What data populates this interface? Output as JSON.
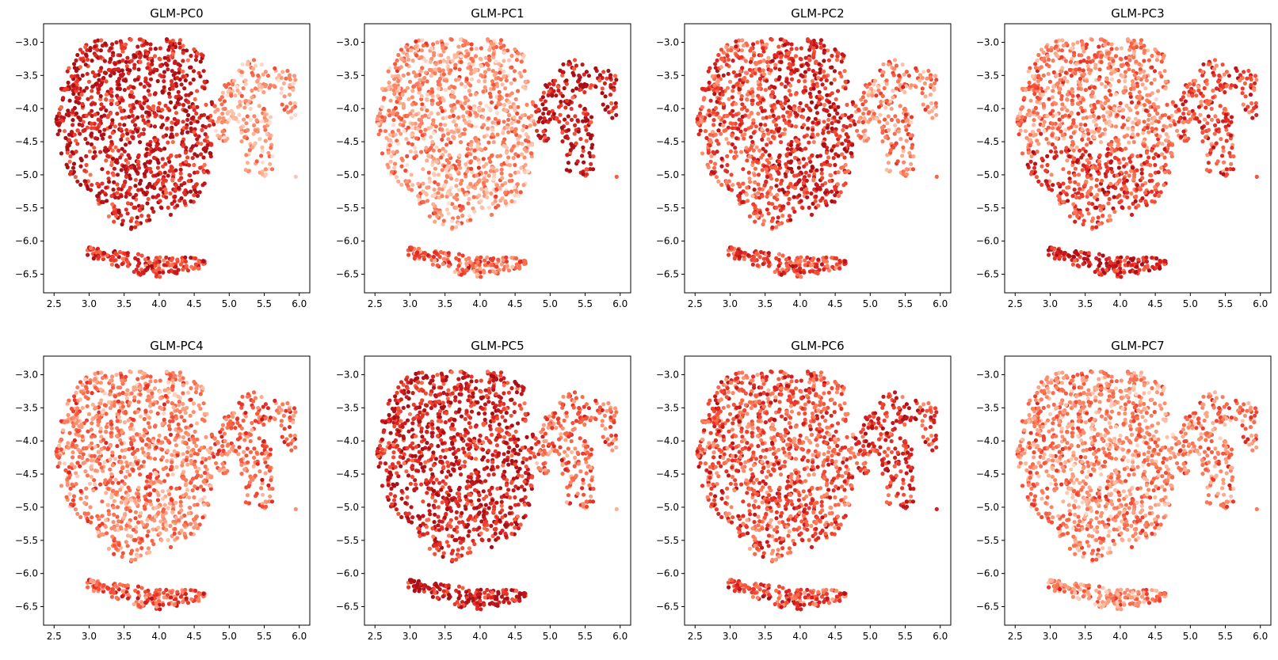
{
  "figure": {
    "colormap": "Reds",
    "colormap_stops": [
      "#fee0d2",
      "#fcbba1",
      "#fc9272",
      "#fb6a4a",
      "#ef3b2c",
      "#cb181d",
      "#a50f15"
    ]
  },
  "chart_data": [
    {
      "type": "scatter",
      "title": "GLM-PC0",
      "xlim": [
        2.35,
        6.15
      ],
      "ylim": [
        -6.78,
        -2.72
      ],
      "xticks": [
        "2.5",
        "3.0",
        "3.5",
        "4.0",
        "4.5",
        "5.0",
        "5.5",
        "6.0"
      ],
      "yticks": [
        "-3.0",
        "-3.5",
        "-4.0",
        "-4.5",
        "-5.0",
        "-5.5",
        "-6.0",
        "-6.5"
      ],
      "grid": false,
      "color_by_region": {
        "main_blob": 0.82,
        "right_lobe": 0.28,
        "bottom_arc": 0.7
      }
    },
    {
      "type": "scatter",
      "title": "GLM-PC1",
      "xlim": [
        2.35,
        6.15
      ],
      "ylim": [
        -6.78,
        -2.72
      ],
      "xticks": [
        "2.5",
        "3.0",
        "3.5",
        "4.0",
        "4.5",
        "5.0",
        "5.5",
        "6.0"
      ],
      "yticks": [
        "-3.0",
        "-3.5",
        "-4.0",
        "-4.5",
        "-5.0",
        "-5.5",
        "-6.0",
        "-6.5"
      ],
      "grid": false,
      "color_by_region": {
        "main_blob": 0.33,
        "right_lobe": 0.85,
        "bottom_arc": 0.5
      }
    },
    {
      "type": "scatter",
      "title": "GLM-PC2",
      "xlim": [
        2.35,
        6.15
      ],
      "ylim": [
        -6.78,
        -2.72
      ],
      "xticks": [
        "2.5",
        "3.0",
        "3.5",
        "4.0",
        "4.5",
        "5.0",
        "5.5",
        "6.0"
      ],
      "yticks": [
        "-3.0",
        "-3.5",
        "-4.0",
        "-4.5",
        "-5.0",
        "-5.5",
        "-6.0",
        "-6.5"
      ],
      "grid": false,
      "color_by_region": {
        "main_blob": 0.65,
        "right_lobe": 0.4,
        "bottom_arc": 0.62
      }
    },
    {
      "type": "scatter",
      "title": "GLM-PC3",
      "xlim": [
        2.35,
        6.15
      ],
      "ylim": [
        -6.78,
        -2.72
      ],
      "xticks": [
        "2.5",
        "3.0",
        "3.5",
        "4.0",
        "4.5",
        "5.0",
        "5.5",
        "6.0"
      ],
      "yticks": [
        "-3.0",
        "-3.5",
        "-4.0",
        "-4.5",
        "-5.0",
        "-5.5",
        "-6.0",
        "-6.5"
      ],
      "grid": false,
      "color_by_region": {
        "main_blob": 0.5,
        "right_lobe": 0.6,
        "bottom_arc": 0.8
      }
    },
    {
      "type": "scatter",
      "title": "GLM-PC4",
      "xlim": [
        2.35,
        6.15
      ],
      "ylim": [
        -6.78,
        -2.72
      ],
      "xticks": [
        "2.5",
        "3.0",
        "3.5",
        "4.0",
        "4.5",
        "5.0",
        "5.5",
        "6.0"
      ],
      "yticks": [
        "-3.0",
        "-3.5",
        "-4.0",
        "-4.5",
        "-5.0",
        "-5.5",
        "-6.0",
        "-6.5"
      ],
      "grid": false,
      "color_by_region": {
        "main_blob": 0.4,
        "right_lobe": 0.5,
        "bottom_arc": 0.58
      }
    },
    {
      "type": "scatter",
      "title": "GLM-PC5",
      "xlim": [
        2.35,
        6.15
      ],
      "ylim": [
        -6.78,
        -2.72
      ],
      "xticks": [
        "2.5",
        "3.0",
        "3.5",
        "4.0",
        "4.5",
        "5.0",
        "5.5",
        "6.0"
      ],
      "yticks": [
        "-3.0",
        "-3.5",
        "-4.0",
        "-4.5",
        "-5.0",
        "-5.5",
        "-6.0",
        "-6.5"
      ],
      "grid": false,
      "color_by_region": {
        "main_blob": 0.78,
        "right_lobe": 0.5,
        "bottom_arc": 0.85
      }
    },
    {
      "type": "scatter",
      "title": "GLM-PC6",
      "xlim": [
        2.35,
        6.15
      ],
      "ylim": [
        -6.78,
        -2.72
      ],
      "xticks": [
        "2.5",
        "3.0",
        "3.5",
        "4.0",
        "4.5",
        "5.0",
        "5.5",
        "6.0"
      ],
      "yticks": [
        "-3.0",
        "-3.5",
        "-4.0",
        "-4.5",
        "-5.0",
        "-5.5",
        "-6.0",
        "-6.5"
      ],
      "grid": false,
      "color_by_region": {
        "main_blob": 0.58,
        "right_lobe": 0.68,
        "bottom_arc": 0.62
      }
    },
    {
      "type": "scatter",
      "title": "GLM-PC7",
      "xlim": [
        2.35,
        6.15
      ],
      "ylim": [
        -6.78,
        -2.72
      ],
      "xticks": [
        "2.5",
        "3.0",
        "3.5",
        "4.0",
        "4.5",
        "5.0",
        "5.5",
        "6.0"
      ],
      "yticks": [
        "-3.0",
        "-3.5",
        "-4.0",
        "-4.5",
        "-5.0",
        "-5.5",
        "-6.0",
        "-6.5"
      ],
      "grid": false,
      "color_by_region": {
        "main_blob": 0.38,
        "right_lobe": 0.45,
        "bottom_arc": 0.4
      }
    }
  ]
}
